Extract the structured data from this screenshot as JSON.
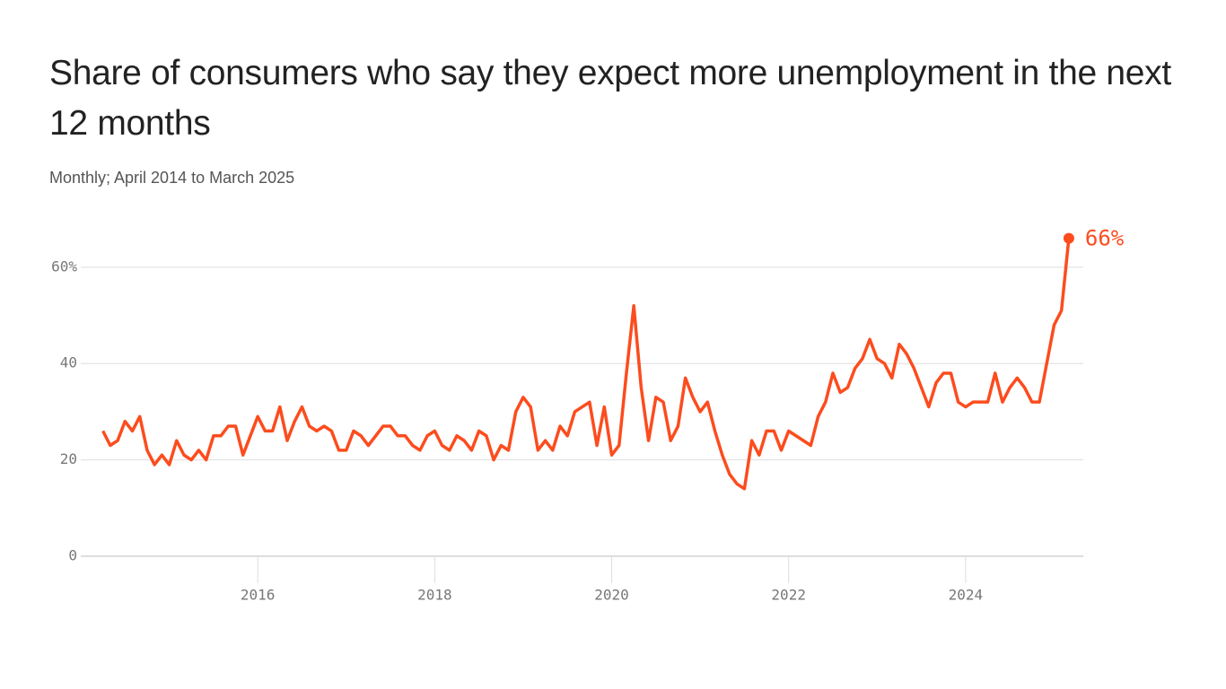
{
  "chart_data": {
    "type": "line",
    "title": "Share of consumers who say they expect more unemployment in the next 12 months",
    "subtitle": "Monthly; April 2014 to March 2025",
    "color": "#fc4c1e",
    "grid": true,
    "xlim": [
      2014,
      2025.33
    ],
    "ylim": [
      0,
      66
    ],
    "xticks": [
      2016,
      2018,
      2020,
      2022,
      2024
    ],
    "yticks": [
      0,
      20,
      40,
      {
        "value": 60,
        "label": "60%"
      }
    ],
    "x": [
      2014.25,
      2014.3333,
      2014.4167,
      2014.5,
      2014.5833,
      2014.6667,
      2014.75,
      2014.8333,
      2014.9167,
      2015,
      2015.0833,
      2015.1667,
      2015.25,
      2015.3333,
      2015.4167,
      2015.5,
      2015.5833,
      2015.6667,
      2015.75,
      2015.8333,
      2015.9167,
      2016,
      2016.0833,
      2016.1667,
      2016.25,
      2016.3333,
      2016.4167,
      2016.5,
      2016.5833,
      2016.6667,
      2016.75,
      2016.8333,
      2016.9167,
      2017,
      2017.0833,
      2017.1667,
      2017.25,
      2017.3333,
      2017.4167,
      2017.5,
      2017.5833,
      2017.6667,
      2017.75,
      2017.8333,
      2017.9167,
      2018,
      2018.0833,
      2018.1667,
      2018.25,
      2018.3333,
      2018.4167,
      2018.5,
      2018.5833,
      2018.6667,
      2018.75,
      2018.8333,
      2018.9167,
      2019,
      2019.0833,
      2019.1667,
      2019.25,
      2019.3333,
      2019.4167,
      2019.5,
      2019.5833,
      2019.6667,
      2019.75,
      2019.8333,
      2019.9167,
      2020,
      2020.0833,
      2020.1667,
      2020.25,
      2020.3333,
      2020.4167,
      2020.5,
      2020.5833,
      2020.6667,
      2020.75,
      2020.8333,
      2020.9167,
      2021,
      2021.0833,
      2021.1667,
      2021.25,
      2021.3333,
      2021.4167,
      2021.5,
      2021.5833,
      2021.6667,
      2021.75,
      2021.8333,
      2021.9167,
      2022,
      2022.0833,
      2022.1667,
      2022.25,
      2022.3333,
      2022.4167,
      2022.5,
      2022.5833,
      2022.6667,
      2022.75,
      2022.8333,
      2022.9167,
      2023,
      2023.0833,
      2023.1667,
      2023.25,
      2023.3333,
      2023.4167,
      2023.5,
      2023.5833,
      2023.6667,
      2023.75,
      2023.8333,
      2023.9167,
      2024,
      2024.0833,
      2024.1667,
      2024.25,
      2024.3333,
      2024.4167,
      2024.5,
      2024.5833,
      2024.6667,
      2024.75,
      2024.8333,
      2024.9167,
      2025,
      2025.0833,
      2025.1667
    ],
    "values": [
      26,
      23,
      24,
      28,
      26,
      29,
      22,
      19,
      21,
      19,
      24,
      21,
      20,
      22,
      20,
      25,
      25,
      27,
      27,
      21,
      25,
      29,
      26,
      26,
      31,
      24,
      28,
      31,
      27,
      26,
      27,
      26,
      22,
      22,
      26,
      25,
      23,
      25,
      27,
      27,
      25,
      25,
      23,
      22,
      25,
      26,
      23,
      22,
      25,
      24,
      22,
      26,
      25,
      20,
      23,
      22,
      30,
      33,
      31,
      22,
      24,
      22,
      27,
      25,
      30,
      31,
      32,
      23,
      31,
      21,
      23,
      38,
      52,
      35,
      24,
      33,
      32,
      24,
      27,
      37,
      33,
      30,
      32,
      26,
      21,
      17,
      15,
      14,
      24,
      21,
      26,
      26,
      22,
      26,
      25,
      24,
      23,
      29,
      32,
      38,
      34,
      35,
      39,
      41,
      45,
      41,
      40,
      37,
      44,
      42,
      39,
      35,
      31,
      36,
      38,
      38,
      32,
      31,
      32,
      32,
      32,
      38,
      32,
      35,
      37,
      35,
      32,
      32,
      40,
      48,
      51,
      66
    ],
    "value_labels": [
      null,
      null,
      null,
      null,
      null,
      null,
      null,
      null,
      null,
      null,
      null,
      null,
      null,
      null,
      null,
      null,
      null,
      null,
      null,
      null,
      null,
      null,
      null,
      null,
      null,
      null,
      null,
      null,
      null,
      null,
      null,
      null,
      null,
      null,
      null,
      null,
      null,
      null,
      null,
      null,
      null,
      null,
      null,
      null,
      null,
      null,
      null,
      null,
      null,
      null,
      null,
      null,
      null,
      null,
      null,
      null,
      null,
      null,
      null,
      null,
      null,
      null,
      null,
      null,
      null,
      null,
      null,
      null,
      null,
      null,
      null,
      null,
      null,
      null,
      null,
      null,
      null,
      null,
      null,
      null,
      null,
      null,
      null,
      null,
      null,
      null,
      null,
      null,
      null,
      null,
      null,
      null,
      null,
      null,
      null,
      null,
      null,
      null,
      null,
      null,
      null,
      null,
      null,
      null,
      null,
      null,
      null,
      null,
      null,
      null,
      null,
      null,
      null,
      null,
      null,
      null,
      null,
      null,
      null,
      null,
      null,
      null,
      null,
      null,
      null,
      null,
      null,
      null,
      null,
      null,
      null,
      "66%"
    ]
  }
}
